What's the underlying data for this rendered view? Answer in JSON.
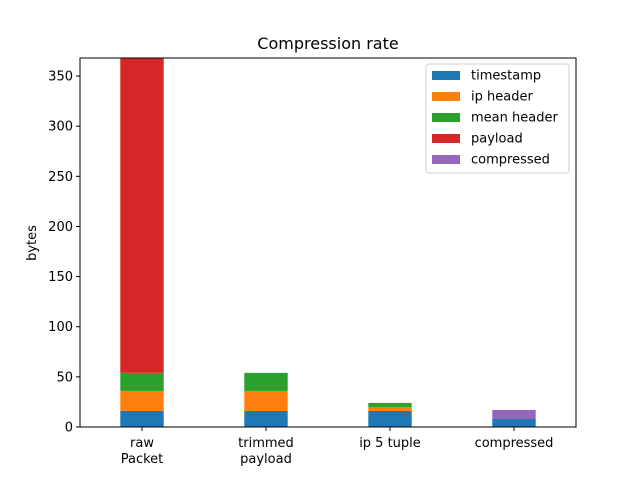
{
  "chart_data": {
    "type": "bar",
    "stacked": true,
    "title": "Compression rate",
    "xlabel": "",
    "ylabel": "bytes",
    "categories": [
      "raw\nPacket",
      "trimmed\npayload",
      "ip 5 tuple",
      "compressed"
    ],
    "ylim": [
      0,
      368
    ],
    "yticks": [
      0,
      50,
      100,
      150,
      200,
      250,
      300,
      350
    ],
    "grid": false,
    "legend_position": "top-right",
    "series": [
      {
        "name": "timestamp",
        "color": "#1f77b4",
        "values": [
          16,
          16,
          16,
          8
        ]
      },
      {
        "name": "ip header",
        "color": "#ff7f0e",
        "values": [
          20,
          20,
          4,
          0
        ]
      },
      {
        "name": "mean header",
        "color": "#2ca02c",
        "values": [
          18,
          18,
          4,
          0
        ]
      },
      {
        "name": "payload",
        "color": "#d62728",
        "values": [
          314,
          0,
          0,
          0
        ]
      },
      {
        "name": "compressed",
        "color": "#9467bd",
        "values": [
          0,
          0,
          0,
          9
        ]
      }
    ]
  }
}
